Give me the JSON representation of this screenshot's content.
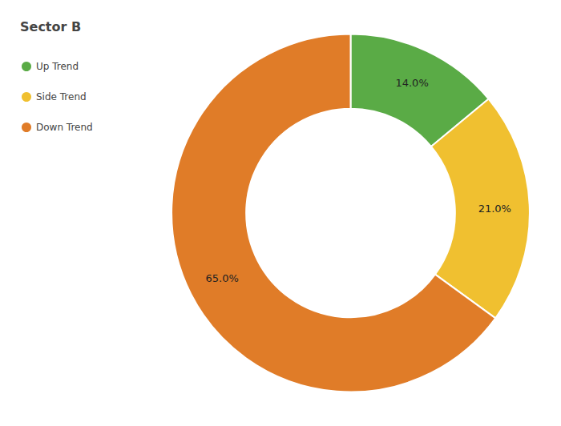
{
  "chart_data": {
    "type": "pie",
    "title": "Sector B",
    "categories": [
      "Up Trend",
      "Side Trend",
      "Down Trend"
    ],
    "values": [
      14.0,
      21.0,
      65.0
    ],
    "value_labels": [
      "14.0%",
      "21.0%",
      "65.0%"
    ],
    "colors": [
      "#5aab46",
      "#f0c030",
      "#e07c28"
    ],
    "legend": "upper left",
    "data_labels": true
  }
}
